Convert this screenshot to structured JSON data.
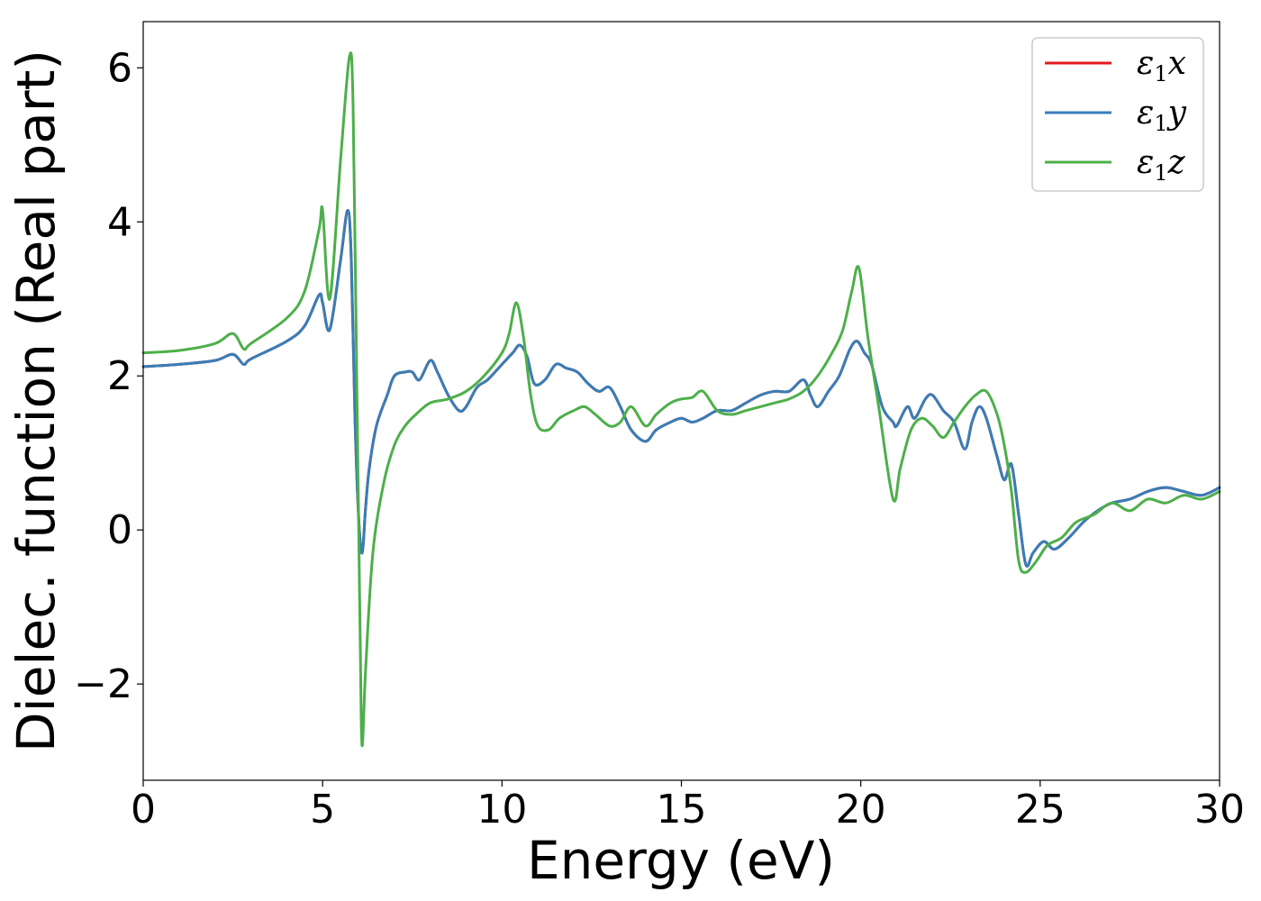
{
  "chart_data": {
    "type": "line",
    "title": "",
    "xlabel": "Energy (eV)",
    "ylabel": "Dielec. function (Real part)",
    "xlim": [
      0,
      30
    ],
    "ylim": [
      -3.25,
      6.6
    ],
    "xticks": [
      0,
      5,
      10,
      15,
      20,
      25,
      30
    ],
    "yticks": [
      -2,
      0,
      2,
      4,
      6
    ],
    "ytick_labels": [
      "−2",
      "0",
      "2",
      "4",
      "6"
    ],
    "grid": false,
    "legend_position": "top-right",
    "series": [
      {
        "name": "ε₁x",
        "sym": "ε",
        "sub": "1",
        "axis": "x",
        "color": "#e41a1c",
        "x": [
          0,
          1,
          2,
          2.5,
          2.8,
          3,
          4,
          4.5,
          4.9,
          5,
          5.2,
          5.5,
          5.7,
          5.8,
          5.9,
          6,
          6.1,
          6.2,
          6.3,
          6.5,
          6.8,
          7,
          7.3,
          7.5,
          7.7,
          8,
          8.2,
          8.5,
          8.8,
          9,
          9.3,
          9.6,
          10,
          10.3,
          10.5,
          10.7,
          10.9,
          11.2,
          11.5,
          11.8,
          12.1,
          12.4,
          12.7,
          13,
          13.3,
          13.6,
          14,
          14.3,
          14.7,
          15,
          15.3,
          15.6,
          16,
          16.4,
          16.8,
          17.2,
          17.6,
          18,
          18.4,
          18.6,
          18.8,
          19.1,
          19.4,
          19.7,
          19.9,
          20.1,
          20.3,
          20.6,
          20.9,
          21,
          21.3,
          21.5,
          21.8,
          22,
          22.3,
          22.6,
          22.9,
          23.1,
          23.3,
          23.5,
          23.8,
          24,
          24.2,
          24.4,
          24.6,
          24.8,
          25.1,
          25.4,
          25.8,
          26.2,
          26.6,
          27,
          27.5,
          28,
          28.5,
          29,
          29.5,
          30
        ],
        "y": [
          2.12,
          2.15,
          2.2,
          2.28,
          2.15,
          2.22,
          2.45,
          2.65,
          3.05,
          2.95,
          2.6,
          3.5,
          4.15,
          3.5,
          1.5,
          0.2,
          -0.3,
          0.3,
          0.8,
          1.35,
          1.75,
          2.0,
          2.05,
          2.05,
          1.95,
          2.2,
          2.05,
          1.75,
          1.55,
          1.6,
          1.85,
          1.95,
          2.15,
          2.3,
          2.4,
          2.25,
          1.9,
          1.95,
          2.15,
          2.1,
          2.05,
          1.9,
          1.8,
          1.85,
          1.6,
          1.3,
          1.15,
          1.3,
          1.4,
          1.45,
          1.4,
          1.45,
          1.55,
          1.55,
          1.65,
          1.75,
          1.8,
          1.8,
          1.95,
          1.75,
          1.6,
          1.8,
          2.0,
          2.35,
          2.45,
          2.3,
          2.15,
          1.6,
          1.4,
          1.35,
          1.6,
          1.45,
          1.7,
          1.75,
          1.55,
          1.4,
          1.05,
          1.4,
          1.6,
          1.45,
          0.95,
          0.65,
          0.85,
          0.2,
          -0.45,
          -0.3,
          -0.15,
          -0.25,
          -0.1,
          0.1,
          0.25,
          0.35,
          0.4,
          0.5,
          0.55,
          0.5,
          0.45,
          0.55
        ]
      },
      {
        "name": "ε₁y",
        "sym": "ε",
        "sub": "1",
        "axis": "y",
        "color": "#377eb8",
        "x": [
          0,
          1,
          2,
          2.5,
          2.8,
          3,
          4,
          4.5,
          4.9,
          5,
          5.2,
          5.5,
          5.7,
          5.8,
          5.9,
          6,
          6.1,
          6.2,
          6.3,
          6.5,
          6.8,
          7,
          7.3,
          7.5,
          7.7,
          8,
          8.2,
          8.5,
          8.8,
          9,
          9.3,
          9.6,
          10,
          10.3,
          10.5,
          10.7,
          10.9,
          11.2,
          11.5,
          11.8,
          12.1,
          12.4,
          12.7,
          13,
          13.3,
          13.6,
          14,
          14.3,
          14.7,
          15,
          15.3,
          15.6,
          16,
          16.4,
          16.8,
          17.2,
          17.6,
          18,
          18.4,
          18.6,
          18.8,
          19.1,
          19.4,
          19.7,
          19.9,
          20.1,
          20.3,
          20.6,
          20.9,
          21,
          21.3,
          21.5,
          21.8,
          22,
          22.3,
          22.6,
          22.9,
          23.1,
          23.3,
          23.5,
          23.8,
          24,
          24.2,
          24.4,
          24.6,
          24.8,
          25.1,
          25.4,
          25.8,
          26.2,
          26.6,
          27,
          27.5,
          28,
          28.5,
          29,
          29.5,
          30
        ],
        "y": [
          2.12,
          2.15,
          2.2,
          2.28,
          2.15,
          2.22,
          2.45,
          2.65,
          3.05,
          2.95,
          2.6,
          3.5,
          4.15,
          3.5,
          1.5,
          0.2,
          -0.3,
          0.3,
          0.8,
          1.35,
          1.75,
          2.0,
          2.05,
          2.05,
          1.95,
          2.2,
          2.05,
          1.75,
          1.55,
          1.6,
          1.85,
          1.95,
          2.15,
          2.3,
          2.4,
          2.25,
          1.9,
          1.95,
          2.15,
          2.1,
          2.05,
          1.9,
          1.8,
          1.85,
          1.6,
          1.3,
          1.15,
          1.3,
          1.4,
          1.45,
          1.4,
          1.45,
          1.55,
          1.55,
          1.65,
          1.75,
          1.8,
          1.8,
          1.95,
          1.75,
          1.6,
          1.8,
          2.0,
          2.35,
          2.45,
          2.3,
          2.15,
          1.6,
          1.4,
          1.35,
          1.6,
          1.45,
          1.7,
          1.75,
          1.55,
          1.4,
          1.05,
          1.4,
          1.6,
          1.45,
          0.95,
          0.65,
          0.85,
          0.2,
          -0.45,
          -0.3,
          -0.15,
          -0.25,
          -0.1,
          0.1,
          0.25,
          0.35,
          0.4,
          0.5,
          0.55,
          0.5,
          0.45,
          0.55
        ]
      },
      {
        "name": "ε₁z",
        "sym": "ε",
        "sub": "1",
        "axis": "z",
        "color": "#4daf4a",
        "x": [
          0,
          1,
          2,
          2.5,
          2.8,
          3,
          4,
          4.5,
          4.9,
          5,
          5.2,
          5.5,
          5.75,
          5.85,
          5.95,
          6.05,
          6.1,
          6.2,
          6.4,
          6.7,
          7,
          7.3,
          7.6,
          8,
          8.5,
          9,
          9.5,
          10,
          10.2,
          10.4,
          10.6,
          10.8,
          11,
          11.3,
          11.6,
          12,
          12.3,
          12.6,
          13,
          13.3,
          13.6,
          14,
          14.3,
          14.7,
          15,
          15.3,
          15.6,
          16,
          16.4,
          16.8,
          17.2,
          17.6,
          18,
          18.4,
          18.8,
          19.2,
          19.5,
          19.75,
          19.95,
          20.2,
          20.5,
          20.9,
          21.1,
          21.4,
          21.7,
          22,
          22.3,
          22.6,
          22.9,
          23.2,
          23.5,
          23.8,
          24,
          24.2,
          24.4,
          24.6,
          24.9,
          25.2,
          25.6,
          26,
          26.5,
          27,
          27.5,
          28,
          28.5,
          29,
          29.5,
          30
        ],
        "y": [
          2.3,
          2.33,
          2.42,
          2.55,
          2.35,
          2.42,
          2.75,
          3.1,
          3.9,
          4.15,
          3.0,
          4.8,
          6.15,
          5.5,
          2.0,
          -1.5,
          -2.8,
          -1.8,
          -0.3,
          0.6,
          1.1,
          1.35,
          1.5,
          1.65,
          1.7,
          1.8,
          2.0,
          2.3,
          2.55,
          2.95,
          2.5,
          1.75,
          1.35,
          1.3,
          1.45,
          1.55,
          1.6,
          1.5,
          1.35,
          1.4,
          1.6,
          1.35,
          1.5,
          1.65,
          1.7,
          1.72,
          1.8,
          1.55,
          1.5,
          1.55,
          1.6,
          1.65,
          1.7,
          1.8,
          2.0,
          2.3,
          2.6,
          3.1,
          3.4,
          2.5,
          1.6,
          0.4,
          0.8,
          1.3,
          1.45,
          1.35,
          1.2,
          1.4,
          1.6,
          1.75,
          1.8,
          1.5,
          1.1,
          0.5,
          -0.4,
          -0.55,
          -0.4,
          -0.2,
          -0.1,
          0.1,
          0.2,
          0.35,
          0.25,
          0.4,
          0.35,
          0.45,
          0.4,
          0.5
        ]
      }
    ]
  }
}
